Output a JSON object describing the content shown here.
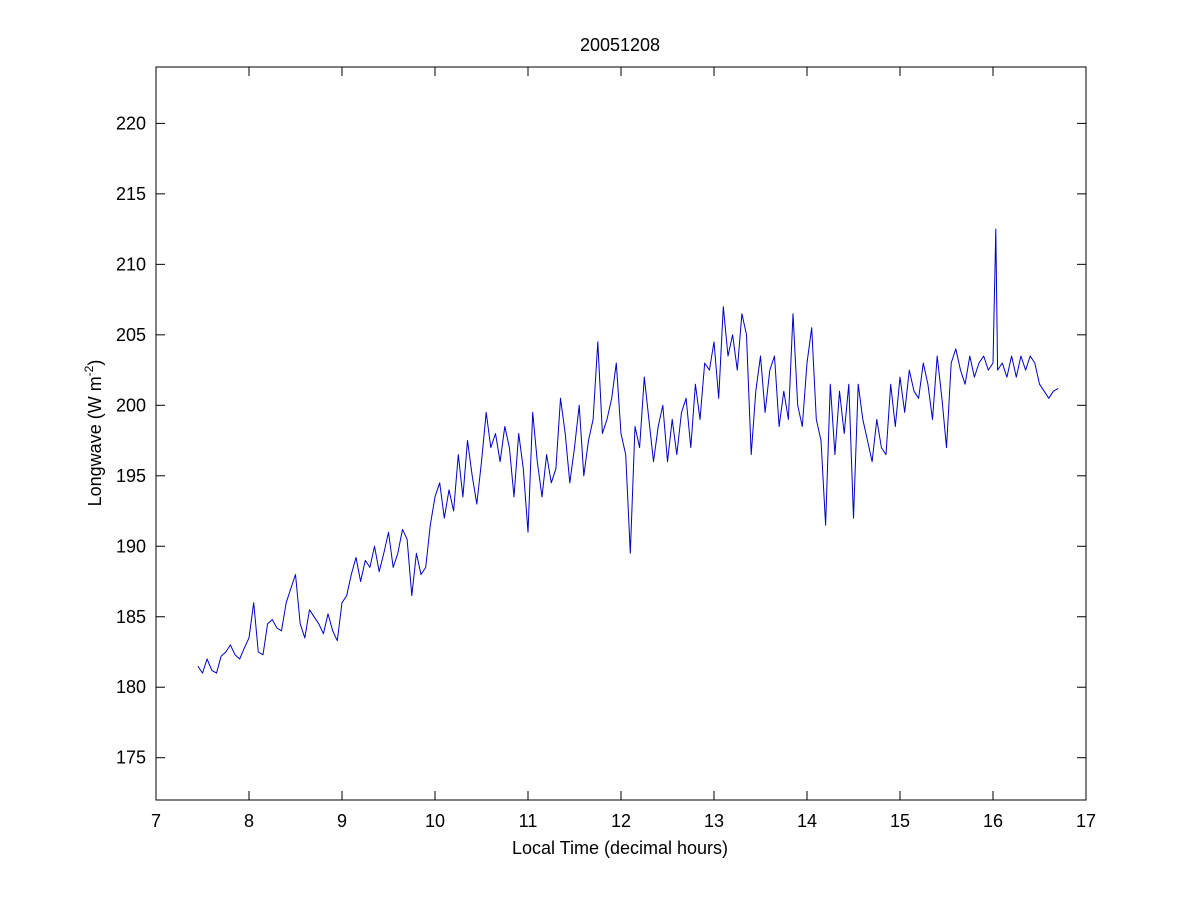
{
  "chart_data": {
    "type": "line",
    "title": "20051208",
    "xlabel": "Local Time (decimal hours)",
    "ylabel": {
      "base": "Longwave (W m",
      "sup": "-2",
      "close": ")"
    },
    "xlim": [
      7,
      17
    ],
    "ylim": [
      172,
      224
    ],
    "xticks": [
      7,
      8,
      9,
      10,
      11,
      12,
      13,
      14,
      15,
      16,
      17
    ],
    "yticks": [
      175,
      180,
      185,
      190,
      195,
      200,
      205,
      210,
      215,
      220
    ],
    "grid": false,
    "line_color": "#0000c8",
    "series": [
      {
        "x": [
          7.45,
          7.5,
          7.55,
          7.6,
          7.65,
          7.7,
          7.75,
          7.8,
          7.85,
          7.9,
          7.95,
          8.0,
          8.05,
          8.1,
          8.15,
          8.2,
          8.25,
          8.3,
          8.35,
          8.4,
          8.45,
          8.5,
          8.55,
          8.6,
          8.65,
          8.7,
          8.75,
          8.8,
          8.85,
          8.9,
          8.95,
          9.0,
          9.05,
          9.1,
          9.15,
          9.2,
          9.25,
          9.3,
          9.35,
          9.4,
          9.45,
          9.5,
          9.55,
          9.6,
          9.65,
          9.7,
          9.75,
          9.8,
          9.85,
          9.9,
          9.95,
          10.0,
          10.05,
          10.1,
          10.15,
          10.2,
          10.25,
          10.3,
          10.35,
          10.4,
          10.45,
          10.5,
          10.55,
          10.6,
          10.65,
          10.7,
          10.75,
          10.8,
          10.85,
          10.9,
          10.95,
          11.0,
          11.05,
          11.1,
          11.15,
          11.2,
          11.25,
          11.3,
          11.35,
          11.4,
          11.45,
          11.5,
          11.55,
          11.6,
          11.65,
          11.7,
          11.75,
          11.8,
          11.85,
          11.9,
          11.95,
          12.0,
          12.05,
          12.1,
          12.15,
          12.2,
          12.25,
          12.3,
          12.35,
          12.4,
          12.45,
          12.5,
          12.55,
          12.6,
          12.65,
          12.7,
          12.75,
          12.8,
          12.85,
          12.9,
          12.95,
          13.0,
          13.05,
          13.1,
          13.15,
          13.2,
          13.25,
          13.3,
          13.35,
          13.4,
          13.45,
          13.5,
          13.55,
          13.6,
          13.65,
          13.7,
          13.75,
          13.8,
          13.85,
          13.9,
          13.95,
          14.0,
          14.05,
          14.1,
          14.15,
          14.2,
          14.25,
          14.3,
          14.35,
          14.4,
          14.45,
          14.5,
          14.55,
          14.6,
          14.65,
          14.7,
          14.75,
          14.8,
          14.85,
          14.9,
          14.95,
          15.0,
          15.05,
          15.1,
          15.15,
          15.2,
          15.25,
          15.3,
          15.35,
          15.4,
          15.45,
          15.5,
          15.55,
          15.6,
          15.65,
          15.7,
          15.75,
          15.8,
          15.85,
          15.9,
          15.95,
          16.0,
          16.03,
          16.05,
          16.1,
          16.15,
          16.2,
          16.25,
          16.3,
          16.35,
          16.4,
          16.45,
          16.5,
          16.55,
          16.6,
          16.65,
          16.7
        ],
        "y": [
          181.5,
          181.0,
          182.0,
          181.2,
          181.0,
          182.2,
          182.5,
          183.0,
          182.3,
          182.0,
          182.8,
          183.5,
          186.0,
          182.5,
          182.3,
          184.5,
          184.8,
          184.2,
          184.0,
          186.0,
          187.0,
          188.0,
          184.5,
          183.5,
          185.5,
          185.0,
          184.5,
          183.8,
          185.2,
          184.0,
          183.3,
          186.0,
          186.5,
          188.0,
          189.2,
          187.5,
          189.0,
          188.5,
          190.0,
          188.2,
          189.5,
          191.0,
          188.5,
          189.5,
          191.2,
          190.5,
          186.5,
          189.5,
          188.0,
          188.5,
          191.5,
          193.5,
          194.5,
          192.0,
          194.0,
          192.5,
          196.5,
          193.5,
          197.5,
          195.0,
          193.0,
          196.0,
          199.5,
          197.0,
          198.0,
          196.0,
          198.5,
          197.0,
          193.5,
          198.0,
          195.5,
          191.0,
          199.5,
          196.0,
          193.5,
          196.5,
          194.5,
          195.5,
          200.5,
          198.0,
          194.5,
          197.0,
          200.0,
          195.0,
          197.5,
          199.0,
          204.5,
          198.0,
          199.0,
          200.5,
          203.0,
          198.0,
          196.5,
          189.5,
          198.5,
          197.0,
          202.0,
          199.0,
          196.0,
          198.5,
          200.0,
          196.0,
          199.0,
          196.5,
          199.5,
          200.5,
          197.0,
          201.5,
          199.0,
          203.0,
          202.5,
          204.5,
          200.5,
          207.0,
          203.5,
          205.0,
          202.5,
          206.5,
          205.0,
          196.5,
          201.0,
          203.5,
          199.5,
          202.5,
          203.5,
          198.5,
          201.0,
          199.0,
          206.5,
          200.0,
          198.5,
          203.0,
          205.5,
          199.0,
          197.5,
          191.5,
          201.5,
          196.5,
          201.0,
          198.0,
          201.5,
          192.0,
          201.5,
          199.0,
          197.5,
          196.0,
          199.0,
          197.0,
          196.5,
          201.5,
          198.5,
          202.0,
          199.5,
          202.5,
          201.0,
          200.5,
          203.0,
          201.5,
          199.0,
          203.5,
          200.5,
          197.0,
          203.0,
          204.0,
          202.5,
          201.5,
          203.5,
          202.0,
          203.0,
          203.5,
          202.5,
          203.0,
          212.5,
          202.5,
          203.0,
          202.0,
          203.5,
          202.0,
          203.5,
          202.5,
          203.5,
          203.0,
          201.5,
          201.0,
          200.5,
          201.0,
          201.2
        ]
      }
    ]
  }
}
